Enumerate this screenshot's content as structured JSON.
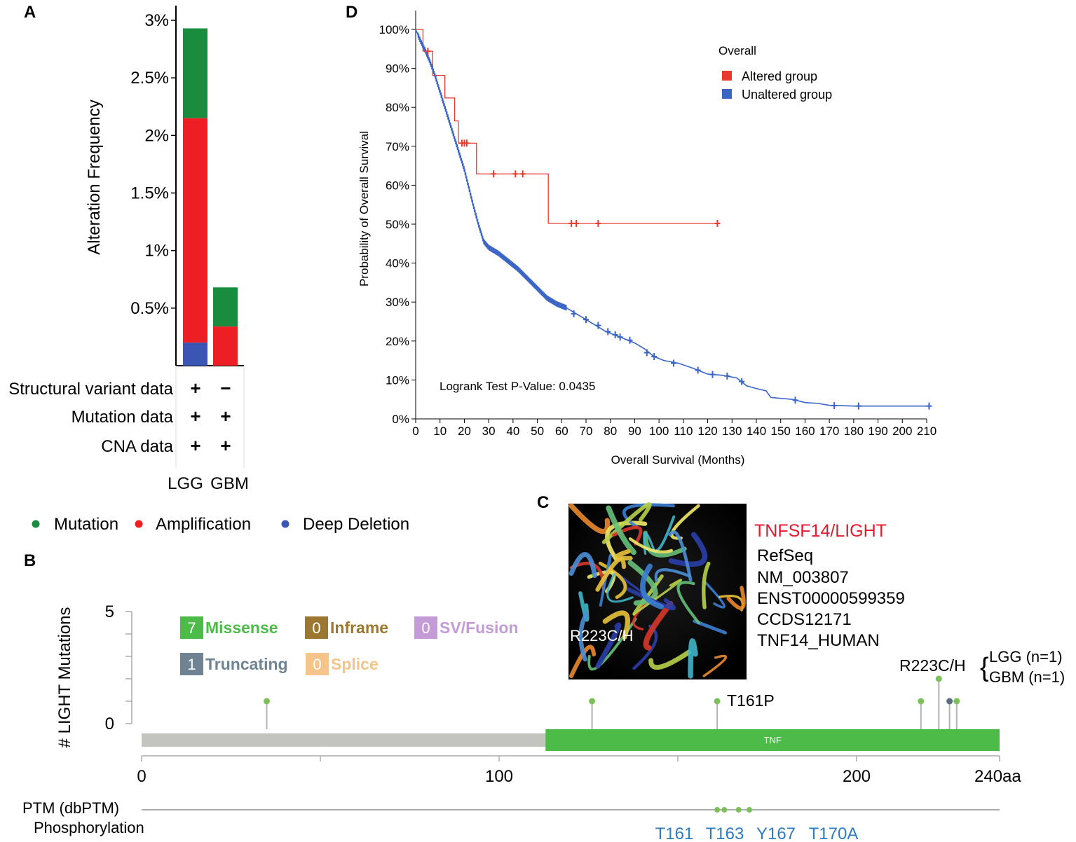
{
  "panels": {
    "a": "A",
    "b": "B",
    "c": "C",
    "d": "D"
  },
  "chart_data": [
    {
      "panel": "A",
      "type": "bar",
      "stacked": true,
      "categories": [
        "LGG",
        "GBM"
      ],
      "series": [
        {
          "name": "Deep Deletion",
          "color": "#3a55b4",
          "values": [
            0.2,
            0.0
          ]
        },
        {
          "name": "Amplification",
          "color": "#ee1e25",
          "values": [
            1.95,
            0.34
          ]
        },
        {
          "name": "Mutation",
          "color": "#1a8c3e",
          "values": [
            0.78,
            0.34
          ]
        }
      ],
      "ylabel": "Alteration Frequency",
      "ylim": [
        0,
        3
      ],
      "yticks": [
        {
          "value": 0.5,
          "label": "0.5%"
        },
        {
          "value": 1,
          "label": "1%"
        },
        {
          "value": 1.5,
          "label": "1.5%"
        },
        {
          "value": 2,
          "label": "2%"
        },
        {
          "value": 2.5,
          "label": "2.5%"
        },
        {
          "value": 3,
          "label": "3%"
        }
      ],
      "data_rows": [
        {
          "label": "Structural variant data",
          "values": [
            "+",
            "−"
          ]
        },
        {
          "label": "Mutation data",
          "values": [
            "+",
            "+"
          ]
        },
        {
          "label": "CNA data",
          "values": [
            "+",
            "+"
          ]
        }
      ],
      "legend": [
        {
          "label": "Mutation",
          "color": "#1a8c3e"
        },
        {
          "label": "Amplification",
          "color": "#ee1e25"
        },
        {
          "label": "Deep Deletion",
          "color": "#3a55b4"
        }
      ]
    },
    {
      "panel": "B",
      "type": "scatter",
      "subtype": "lollipop",
      "ylabel": "# LIGHT Mutations",
      "ylim": [
        0,
        5
      ],
      "yticks": [
        "0",
        "5"
      ],
      "xlim": [
        0,
        240
      ],
      "xticks": [
        {
          "value": 0,
          "label": "0"
        },
        {
          "value": 100,
          "label": "100"
        },
        {
          "value": 200,
          "label": "200"
        },
        {
          "value": 240,
          "label": "240aa"
        }
      ],
      "domain": {
        "name": "TNF",
        "start": 113,
        "end": 240,
        "color": "#4cbb47"
      },
      "mutations": [
        {
          "pos": 35,
          "count": 1,
          "type": "missense",
          "color": "#7cc05a"
        },
        {
          "pos": 126,
          "count": 1,
          "type": "missense",
          "color": "#7cc05a"
        },
        {
          "pos": 161,
          "count": 1,
          "type": "missense",
          "color": "#7cc05a",
          "label": "T161P"
        },
        {
          "pos": 218,
          "count": 1,
          "type": "missense",
          "color": "#7cc05a"
        },
        {
          "pos": 223,
          "count": 2,
          "type": "missense",
          "color": "#7cc05a",
          "label": "R223C/H"
        },
        {
          "pos": 226,
          "count": 1,
          "type": "truncating",
          "color": "#5d6e80"
        },
        {
          "pos": 228,
          "count": 1,
          "type": "missense",
          "color": "#7cc05a"
        }
      ],
      "mutation_annotation": [
        "LGG (n=1)",
        "GBM (n=1)"
      ],
      "legend": [
        {
          "count": "7",
          "label": "Missense",
          "box": "#4cbb47",
          "text": "#4cbb47"
        },
        {
          "count": "0",
          "label": "Inframe",
          "box": "#9b7730",
          "text": "#9b7730"
        },
        {
          "count": "0",
          "label": "SV/Fusion",
          "box": "#c49bd6",
          "text": "#c49bd6"
        },
        {
          "count": "1",
          "label": "Truncating",
          "box": "#6f8392",
          "text": "#6f8392"
        },
        {
          "count": "0",
          "label": "Splice",
          "box": "#f5c48a",
          "text": "#f5c48a"
        }
      ],
      "ptm": {
        "title": "PTM (dbPTM)",
        "subtitle": "Phosphorylation",
        "sites": [
          {
            "pos": 161,
            "label": "T161"
          },
          {
            "pos": 163,
            "label": "T163"
          },
          {
            "pos": 167,
            "label": "Y167"
          },
          {
            "pos": 170,
            "label": "T170A"
          }
        ]
      }
    },
    {
      "panel": "D",
      "type": "line",
      "subtype": "kaplan-meier",
      "xlabel": "Overall Survival (Months)",
      "ylabel": "Probability of Overall Survival",
      "xlim": [
        0,
        210
      ],
      "ylim": [
        0,
        100
      ],
      "xticks": [
        0,
        10,
        20,
        30,
        40,
        50,
        60,
        70,
        80,
        90,
        100,
        110,
        120,
        130,
        140,
        150,
        160,
        170,
        180,
        190,
        200,
        210
      ],
      "yticks": [
        "0%",
        "10%",
        "20%",
        "30%",
        "40%",
        "50%",
        "60%",
        "70%",
        "80%",
        "90%",
        "100%"
      ],
      "legend_title": "Overall",
      "annotation": "Logrank Test P-Value: 0.0435",
      "series": [
        {
          "name": "Altered group",
          "color": "#e8392c",
          "steps": [
            [
              0,
              100
            ],
            [
              3,
              100
            ],
            [
              3,
              94.4
            ],
            [
              7,
              94.4
            ],
            [
              7,
              88.2
            ],
            [
              12,
              88.2
            ],
            [
              12,
              82.4
            ],
            [
              16,
              82.4
            ],
            [
              16,
              76.5
            ],
            [
              17.5,
              76.5
            ],
            [
              17.5,
              70.8
            ],
            [
              25,
              70.8
            ],
            [
              25,
              62.9
            ],
            [
              54.5,
              62.9
            ],
            [
              54.5,
              50.2
            ],
            [
              124,
              50.2
            ]
          ],
          "censored": [
            [
              5,
              94.4
            ],
            [
              19,
              70.8
            ],
            [
              20,
              70.8
            ],
            [
              21,
              70.8
            ],
            [
              32,
              62.9
            ],
            [
              41,
              62.9
            ],
            [
              44,
              62.9
            ],
            [
              64,
              50.2
            ],
            [
              66,
              50.2
            ],
            [
              75,
              50.2
            ],
            [
              124,
              50.2
            ]
          ]
        },
        {
          "name": "Unaltered group",
          "color": "#3a65c4",
          "curve": [
            [
              0,
              100
            ],
            [
              2,
              97
            ],
            [
              4,
              94.5
            ],
            [
              6,
              91.5
            ],
            [
              8,
              88
            ],
            [
              10,
              84
            ],
            [
              12,
              80
            ],
            [
              14,
              76
            ],
            [
              16,
              72
            ],
            [
              18,
              68
            ],
            [
              20,
              64
            ],
            [
              22,
              59
            ],
            [
              24,
              54
            ],
            [
              26,
              49.5
            ],
            [
              28,
              45.5
            ],
            [
              30,
              44
            ],
            [
              34,
              42.5
            ],
            [
              38,
              40.5
            ],
            [
              42,
              38.5
            ],
            [
              46,
              36
            ],
            [
              50,
              33.5
            ],
            [
              54,
              31
            ],
            [
              58,
              29.5
            ],
            [
              62,
              28.5
            ],
            [
              66,
              27
            ],
            [
              70,
              25.5
            ],
            [
              74,
              24
            ],
            [
              78,
              22.5
            ],
            [
              84,
              21
            ],
            [
              90,
              19.5
            ],
            [
              94,
              18
            ],
            [
              98,
              16
            ],
            [
              102,
              15
            ],
            [
              108,
              14.3
            ],
            [
              114,
              13
            ],
            [
              120,
              11.5
            ],
            [
              126,
              11.2
            ],
            [
              132,
              10.5
            ],
            [
              136,
              8.5
            ],
            [
              140,
              7.8
            ],
            [
              144,
              7.2
            ],
            [
              146,
              5.5
            ],
            [
              155,
              5
            ],
            [
              160,
              4.2
            ],
            [
              165,
              4
            ],
            [
              170,
              3.5
            ],
            [
              180,
              3.3
            ],
            [
              190,
              3.3
            ],
            [
              200,
              3.3
            ],
            [
              211,
              3.3
            ]
          ],
          "censored": [
            [
              65,
              27
            ],
            [
              70,
              25.5
            ],
            [
              75,
              24
            ],
            [
              79,
              22.4
            ],
            [
              82,
              21.6
            ],
            [
              84,
              21
            ],
            [
              88,
              20.2
            ],
            [
              95,
              17
            ],
            [
              98,
              16
            ],
            [
              106,
              14.3
            ],
            [
              116,
              12.5
            ],
            [
              122,
              11.4
            ],
            [
              128,
              11.0
            ],
            [
              134,
              9.6
            ],
            [
              156,
              4.8
            ],
            [
              172,
              3.4
            ],
            [
              182,
              3.3
            ],
            [
              211,
              3.3
            ]
          ]
        }
      ]
    }
  ],
  "structure": {
    "mutation_label": "R223C/H",
    "gene": "TNFSF14/LIGHT",
    "gene_color": "#e8192c",
    "info": [
      "RefSeq",
      "NM_003807",
      "ENST00000599359",
      "CCDS12171",
      "TNF14_HUMAN"
    ]
  }
}
